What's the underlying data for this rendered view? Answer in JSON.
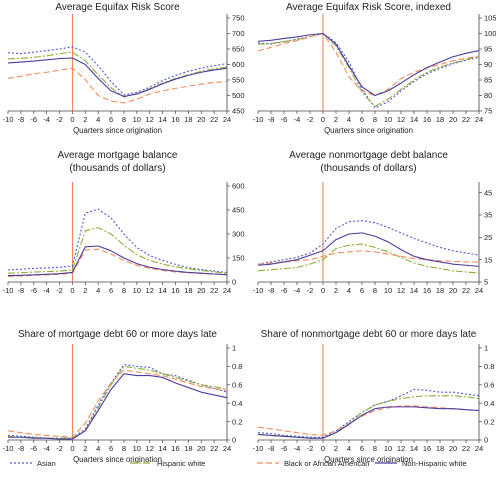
{
  "colors": {
    "asian": "#4a5bd3",
    "hispanic_white": "#8fae3a",
    "black": "#f28c5b",
    "non_hispanic_white": "#4a3d9e",
    "origination_line": "#ef7a4a",
    "axis": "#444444"
  },
  "legend": [
    {
      "name": "Asian",
      "dash": "dotted",
      "color": "#4a5bd3"
    },
    {
      "name": "Hispanic white",
      "dash": "dashdot",
      "color": "#8fae3a"
    },
    {
      "name": "Black or African American",
      "dash": "dashed",
      "color": "#f28c5b"
    },
    {
      "name": "Non-Hispanic white",
      "dash": "solid",
      "color": "#4a3d9e"
    }
  ],
  "chart_data": [
    {
      "type": "line",
      "title": "Average Equifax Risk Score",
      "xlabel": "Quarters since origination",
      "x_ticks": [
        -10,
        -8,
        -6,
        -4,
        -2,
        0,
        2,
        4,
        6,
        8,
        10,
        12,
        14,
        16,
        18,
        20,
        22,
        24
      ],
      "y_ticks": [
        450,
        500,
        550,
        600,
        650,
        700,
        750
      ],
      "ylim": [
        450,
        750
      ],
      "x": [
        -10,
        -8,
        -6,
        -4,
        -2,
        0,
        2,
        4,
        6,
        8,
        10,
        12,
        14,
        16,
        18,
        20,
        22,
        24
      ],
      "series": [
        {
          "name": "Asian",
          "values": [
            638,
            635,
            640,
            645,
            650,
            657,
            640,
            596,
            545,
            502,
            510,
            527,
            548,
            565,
            578,
            588,
            596,
            603
          ]
        },
        {
          "name": "Hispanic white",
          "values": [
            618,
            620,
            623,
            628,
            635,
            640,
            612,
            567,
            525,
            495,
            505,
            522,
            540,
            555,
            567,
            578,
            586,
            592
          ]
        },
        {
          "name": "Black or African American",
          "values": [
            555,
            562,
            570,
            575,
            582,
            588,
            552,
            500,
            482,
            476,
            488,
            505,
            515,
            523,
            530,
            537,
            542,
            545
          ]
        },
        {
          "name": "Non-Hispanic white",
          "values": [
            605,
            608,
            611,
            615,
            619,
            621,
            600,
            555,
            515,
            497,
            505,
            520,
            538,
            553,
            565,
            575,
            582,
            588
          ]
        }
      ]
    },
    {
      "type": "line",
      "title": "Average Equifax Risk Score, indexed",
      "xlabel": "Quarters since origination",
      "x_ticks": [
        -10,
        -8,
        -6,
        -4,
        -2,
        0,
        2,
        4,
        6,
        8,
        10,
        12,
        14,
        16,
        18,
        20,
        22,
        24
      ],
      "y_ticks": [
        75,
        80,
        85,
        90,
        95,
        100,
        105
      ],
      "ylim": [
        75,
        105
      ],
      "x": [
        -10,
        -8,
        -6,
        -4,
        -2,
        0,
        2,
        4,
        6,
        8,
        10,
        12,
        14,
        16,
        18,
        20,
        22,
        24
      ],
      "series": [
        {
          "name": "Asian",
          "values": [
            97.0,
            96.6,
            97.4,
            98.2,
            99.0,
            100,
            97.1,
            90.8,
            82.0,
            76.0,
            78.0,
            81.5,
            84.5,
            87.0,
            88.8,
            90.2,
            91.4,
            92.3
          ]
        },
        {
          "name": "Hispanic white",
          "values": [
            96.5,
            96.8,
            97.4,
            98.0,
            99.0,
            100,
            96.0,
            89.0,
            81.0,
            76.5,
            78.8,
            82.0,
            85.0,
            87.5,
            89.2,
            90.5,
            91.6,
            92.5
          ]
        },
        {
          "name": "Black or African American",
          "values": [
            94.4,
            95.5,
            96.8,
            97.7,
            98.9,
            100,
            94.0,
            86.0,
            81.5,
            80.0,
            82.0,
            85.5,
            87.5,
            88.9,
            90.0,
            91.2,
            92.0,
            92.7
          ]
        },
        {
          "name": "Non-Hispanic white",
          "values": [
            97.5,
            97.8,
            98.4,
            98.9,
            99.6,
            100,
            96.5,
            89.5,
            82.8,
            80.0,
            81.5,
            84.0,
            86.7,
            89.0,
            90.8,
            92.5,
            93.6,
            94.5
          ]
        }
      ]
    },
    {
      "type": "line",
      "title": "Average mortgage balance",
      "subtitle": "(thousands of dollars)",
      "xlabel": "",
      "x_ticks": [
        -10,
        -8,
        -6,
        -4,
        -2,
        0,
        2,
        4,
        6,
        8,
        10,
        12,
        14,
        16,
        18,
        20,
        22,
        24
      ],
      "y_ticks": [
        0,
        150,
        300,
        450,
        600
      ],
      "ylim": [
        0,
        600
      ],
      "x": [
        -10,
        -8,
        -6,
        -4,
        -2,
        0,
        2,
        4,
        6,
        8,
        10,
        12,
        14,
        16,
        18,
        20,
        22,
        24
      ],
      "series": [
        {
          "name": "Asian",
          "values": [
            75,
            80,
            85,
            88,
            92,
            100,
            430,
            455,
            400,
            300,
            215,
            165,
            135,
            110,
            90,
            78,
            68,
            60
          ]
        },
        {
          "name": "Hispanic white",
          "values": [
            55,
            58,
            62,
            65,
            68,
            75,
            320,
            340,
            300,
            230,
            170,
            135,
            112,
            95,
            82,
            72,
            63,
            55
          ]
        },
        {
          "name": "Black or African American",
          "values": [
            35,
            38,
            42,
            45,
            48,
            55,
            200,
            205,
            175,
            135,
            105,
            85,
            72,
            63,
            58,
            53,
            50,
            48
          ]
        },
        {
          "name": "Non-Hispanic white",
          "values": [
            40,
            42,
            45,
            48,
            52,
            60,
            220,
            225,
            195,
            150,
            115,
            92,
            78,
            68,
            60,
            55,
            50,
            45
          ]
        }
      ]
    },
    {
      "type": "line",
      "title": "Average nonmortgage debt balance",
      "subtitle": "(thousands of dollars)",
      "xlabel": "",
      "x_ticks": [
        -10,
        -8,
        -6,
        -4,
        -2,
        0,
        2,
        4,
        6,
        8,
        10,
        12,
        14,
        16,
        18,
        20,
        22,
        24
      ],
      "y_ticks": [
        5,
        15,
        25,
        35,
        45
      ],
      "ylim": [
        5,
        48
      ],
      "x": [
        -10,
        -8,
        -6,
        -4,
        -2,
        0,
        2,
        4,
        6,
        8,
        10,
        12,
        14,
        16,
        18,
        20,
        22,
        24
      ],
      "series": [
        {
          "name": "Asian",
          "values": [
            13,
            14,
            15,
            16,
            18,
            22,
            29,
            32,
            32.5,
            31.5,
            29.5,
            27,
            24.5,
            22.5,
            20.5,
            19,
            18,
            17
          ]
        },
        {
          "name": "Hispanic white",
          "values": [
            10,
            10.5,
            11,
            11.5,
            13,
            15,
            20,
            21.5,
            22,
            20.5,
            18.5,
            16,
            13.5,
            12,
            11,
            10,
            9.5,
            9
          ]
        },
        {
          "name": "Black or African American",
          "values": [
            13,
            13.5,
            14,
            14.5,
            15,
            16.5,
            18,
            18.5,
            19,
            18.5,
            17.5,
            16.5,
            15.5,
            15,
            14.5,
            14.2,
            14,
            14
          ]
        },
        {
          "name": "Non-Hispanic white",
          "values": [
            12.5,
            13,
            14,
            15,
            17,
            19,
            24,
            26.5,
            27,
            25.5,
            23,
            19.5,
            16.5,
            15,
            14,
            13,
            12.5,
            12
          ]
        }
      ]
    },
    {
      "type": "line",
      "title": "Share of mortgage debt 60 or more days late",
      "xlabel": "Quarters since origination",
      "x_ticks": [
        -10,
        -8,
        -6,
        -4,
        -2,
        0,
        2,
        4,
        6,
        8,
        10,
        12,
        14,
        16,
        18,
        20,
        22,
        24
      ],
      "y_ticks": [
        0,
        0.2,
        0.4,
        0.6,
        0.8,
        1
      ],
      "ylim": [
        0,
        1
      ],
      "x": [
        -10,
        -8,
        -6,
        -4,
        -2,
        0,
        2,
        4,
        6,
        8,
        10,
        12,
        14,
        16,
        18,
        20,
        22,
        24
      ],
      "series": [
        {
          "name": "Asian",
          "values": [
            0.05,
            0.04,
            0.03,
            0.02,
            0.02,
            0.02,
            0.12,
            0.38,
            0.62,
            0.82,
            0.8,
            0.79,
            0.72,
            0.7,
            0.65,
            0.6,
            0.56,
            0.52
          ]
        },
        {
          "name": "Hispanic white",
          "values": [
            0.04,
            0.03,
            0.03,
            0.02,
            0.02,
            0.02,
            0.1,
            0.35,
            0.6,
            0.8,
            0.78,
            0.76,
            0.72,
            0.68,
            0.64,
            0.6,
            0.58,
            0.55
          ]
        },
        {
          "name": "Black or African American",
          "values": [
            0.1,
            0.08,
            0.06,
            0.05,
            0.04,
            0.03,
            0.18,
            0.42,
            0.62,
            0.76,
            0.74,
            0.72,
            0.7,
            0.66,
            0.62,
            0.58,
            0.56,
            0.54
          ]
        },
        {
          "name": "Non-Hispanic white",
          "values": [
            0.03,
            0.03,
            0.02,
            0.02,
            0.01,
            0.01,
            0.1,
            0.32,
            0.55,
            0.72,
            0.7,
            0.7,
            0.68,
            0.62,
            0.57,
            0.52,
            0.49,
            0.46
          ]
        }
      ]
    },
    {
      "type": "line",
      "title": "Share of nonmortgage debt 60 or more days late",
      "xlabel": "Quarters since origination",
      "x_ticks": [
        -10,
        -8,
        -6,
        -4,
        -2,
        0,
        2,
        4,
        6,
        8,
        10,
        12,
        14,
        16,
        18,
        20,
        22,
        24
      ],
      "y_ticks": [
        0,
        0.2,
        0.4,
        0.6,
        0.8,
        1
      ],
      "ylim": [
        0,
        1
      ],
      "x": [
        -10,
        -8,
        -6,
        -4,
        -2,
        0,
        2,
        4,
        6,
        8,
        10,
        12,
        14,
        16,
        18,
        20,
        22,
        24
      ],
      "series": [
        {
          "name": "Asian",
          "values": [
            0.08,
            0.07,
            0.05,
            0.04,
            0.03,
            0.03,
            0.1,
            0.2,
            0.3,
            0.38,
            0.42,
            0.48,
            0.55,
            0.54,
            0.52,
            0.52,
            0.5,
            0.48
          ]
        },
        {
          "name": "Hispanic white",
          "values": [
            0.06,
            0.05,
            0.04,
            0.03,
            0.02,
            0.02,
            0.08,
            0.18,
            0.3,
            0.38,
            0.42,
            0.45,
            0.47,
            0.48,
            0.48,
            0.48,
            0.47,
            0.45
          ]
        },
        {
          "name": "Black or African American",
          "values": [
            0.14,
            0.12,
            0.1,
            0.08,
            0.06,
            0.05,
            0.1,
            0.18,
            0.26,
            0.32,
            0.35,
            0.37,
            0.37,
            0.36,
            0.35,
            0.34,
            0.33,
            0.32
          ]
        },
        {
          "name": "Non-Hispanic white",
          "values": [
            0.06,
            0.05,
            0.04,
            0.03,
            0.02,
            0.02,
            0.08,
            0.17,
            0.27,
            0.34,
            0.36,
            0.36,
            0.36,
            0.35,
            0.34,
            0.34,
            0.33,
            0.32
          ]
        }
      ]
    }
  ]
}
